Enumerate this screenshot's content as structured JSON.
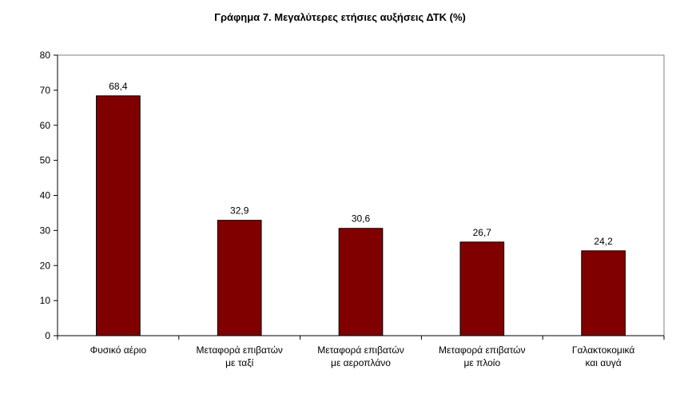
{
  "chart_data": {
    "type": "bar",
    "title": "Γράφημα 7. Μεγαλύτερες ετήσιες αυξήσεις ΔΤΚ (%)",
    "categories": [
      [
        "Φυσικό αέριο"
      ],
      [
        "Μεταφορά επιβατών",
        "με ταξί"
      ],
      [
        "Μεταφορά επιβατών",
        "με αεροπλάνο"
      ],
      [
        "Μεταφορά επιβατών",
        "με πλοίο"
      ],
      [
        "Γαλακτοκομικά",
        "και αυγά"
      ]
    ],
    "values": [
      68.4,
      32.9,
      30.6,
      26.7,
      24.2
    ],
    "value_labels": [
      "68,4",
      "32,9",
      "30,6",
      "26,7",
      "24,2"
    ],
    "ylim": [
      0,
      80
    ],
    "yticks": [
      0,
      10,
      20,
      30,
      40,
      50,
      60,
      70,
      80
    ],
    "grid": false,
    "legend": "none",
    "bar_color": "#800000",
    "bar_edge_color": "#000000"
  }
}
